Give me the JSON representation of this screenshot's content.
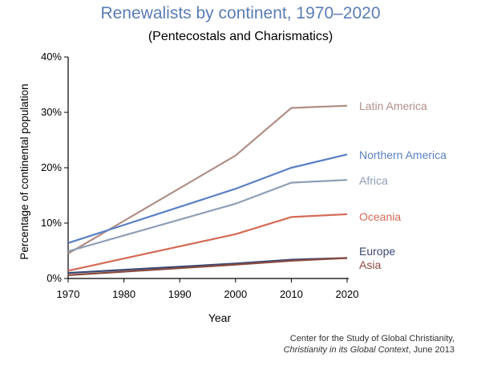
{
  "title": "Renewalists by continent, 1970–2020",
  "subtitle": "(Pentecostals and Charismatics)",
  "source": {
    "line1": "Center for the Study of Global Christianity,",
    "line2_italic": "Christianity in its Global Context",
    "line2_rest": ", June 2013"
  },
  "chart_data": {
    "type": "line",
    "xlabel": "Year",
    "ylabel": "Percentage of continental population",
    "x": [
      1970,
      2000,
      2010,
      2020
    ],
    "xticks": [
      "1970",
      "1980",
      "1990",
      "2000",
      "2010",
      "2020"
    ],
    "yticks": [
      "0%",
      "10%",
      "20%",
      "30%",
      "40%"
    ],
    "xlim": [
      1970,
      2020
    ],
    "ylim": [
      0,
      40
    ],
    "grid": false,
    "legend": "inline labels at line ends",
    "series": [
      {
        "name": "Latin America",
        "values": [
          4.5,
          22.2,
          30.8,
          31.2
        ],
        "color": "#b08f88"
      },
      {
        "name": "Northern America",
        "values": [
          6.4,
          16.2,
          20.0,
          22.4
        ],
        "color": "#5a7fc4"
      },
      {
        "name": "Africa",
        "values": [
          4.9,
          13.5,
          17.3,
          17.8
        ],
        "color": "#8e9eb4"
      },
      {
        "name": "Oceania",
        "values": [
          1.4,
          8.0,
          11.1,
          11.6
        ],
        "color": "#d56a55"
      },
      {
        "name": "Europe",
        "values": [
          1.0,
          2.7,
          3.4,
          3.7
        ],
        "color": "#3a4873"
      },
      {
        "name": "Asia",
        "values": [
          0.6,
          2.5,
          3.2,
          3.7
        ],
        "color": "#8b4a3e"
      }
    ]
  }
}
